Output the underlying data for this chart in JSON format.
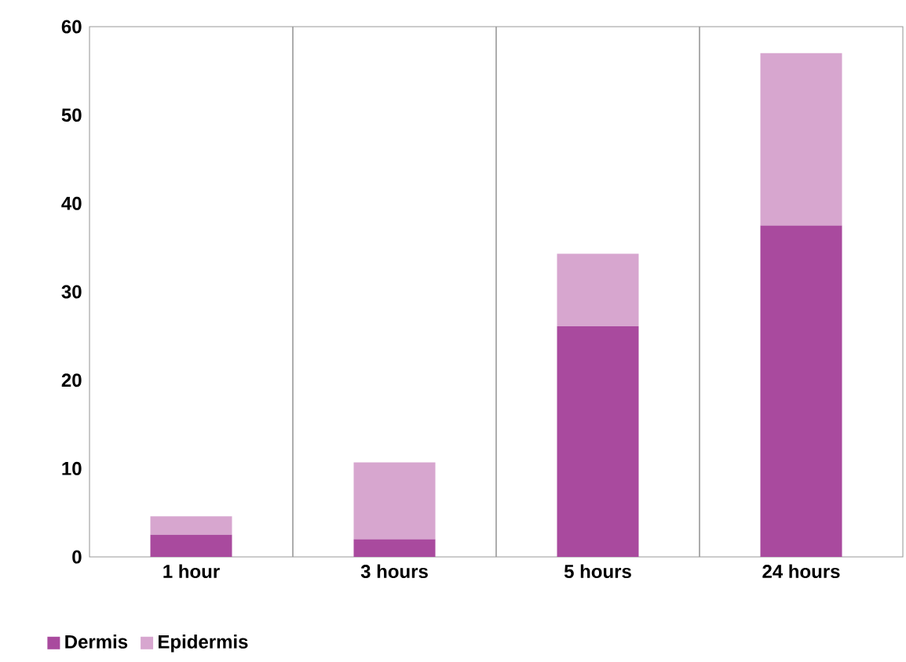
{
  "chart_data": {
    "type": "bar",
    "stacked": true,
    "categories": [
      "1 hour",
      "3 hours",
      "5 hours",
      "24 hours"
    ],
    "series": [
      {
        "name": "Dermis",
        "color": "#a94a9e",
        "values": [
          2.5,
          2.0,
          26.1,
          37.5
        ]
      },
      {
        "name": "Epidermis",
        "color": "#d7a6cf",
        "values": [
          2.1,
          8.7,
          8.2,
          19.5
        ]
      }
    ],
    "ylim": [
      0,
      60
    ],
    "yticks": [
      0,
      10,
      20,
      30,
      40,
      50,
      60
    ],
    "grid": "x",
    "legend": "bottom left"
  }
}
